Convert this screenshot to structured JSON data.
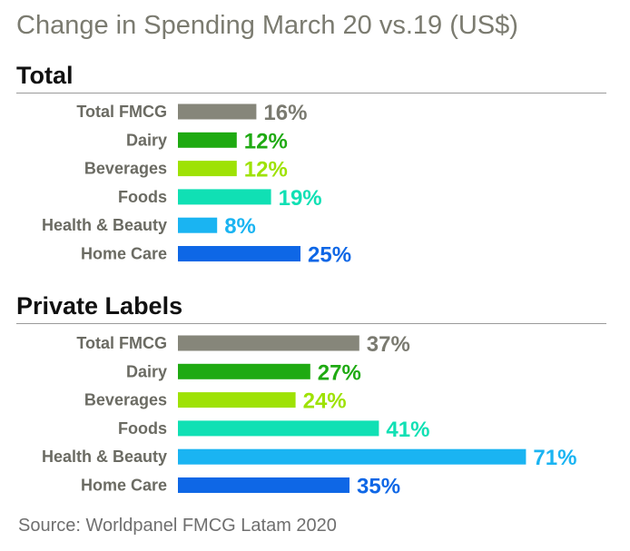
{
  "title": "Change in Spending March 20 vs.19  (US$)",
  "source": "Source: Worldpanel FMCG Latam 2020",
  "chart_data": [
    {
      "type": "bar",
      "orientation": "horizontal",
      "title": "Total",
      "categories": [
        "Total FMCG",
        "Dairy",
        "Beverages",
        "Foods",
        "Health & Beauty",
        "Home Care"
      ],
      "values": [
        16,
        12,
        12,
        19,
        8,
        25
      ],
      "labels": [
        "16%",
        "12%",
        "12%",
        "19%",
        "8%",
        "25%"
      ],
      "colors": [
        "#86867a",
        "#1faa12",
        "#9ee205",
        "#10e0b4",
        "#1ab4f2",
        "#0e67e6"
      ],
      "unit": "%"
    },
    {
      "type": "bar",
      "orientation": "horizontal",
      "title": "Private Labels",
      "categories": [
        "Total FMCG",
        "Dairy",
        "Beverages",
        "Foods",
        "Health & Beauty",
        "Home Care"
      ],
      "values": [
        37,
        27,
        24,
        41,
        71,
        35
      ],
      "labels": [
        "37%",
        "27%",
        "24%",
        "41%",
        "71%",
        "35%"
      ],
      "colors": [
        "#86867a",
        "#1faa12",
        "#9ee205",
        "#10e0b4",
        "#1ab4f2",
        "#0e67e6"
      ],
      "unit": "%"
    }
  ]
}
